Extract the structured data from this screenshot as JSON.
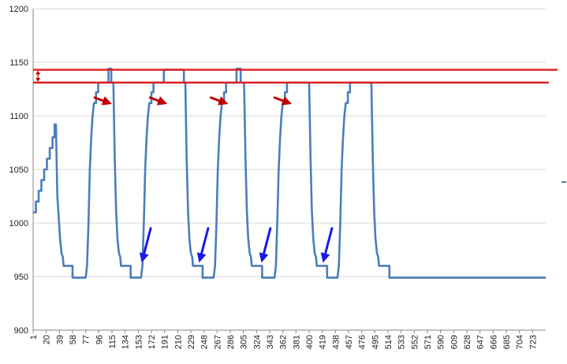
{
  "chart_data": {
    "type": "line",
    "title": "",
    "xlabel": "",
    "ylabel": "",
    "ylim": [
      900,
      1200
    ],
    "xlim": [
      1,
      742
    ],
    "y_ticks": [
      900,
      950,
      1000,
      1050,
      1100,
      1150,
      1200
    ],
    "x_ticks": [
      1,
      20,
      39,
      58,
      77,
      96,
      115,
      134,
      153,
      172,
      191,
      210,
      229,
      248,
      267,
      286,
      305,
      324,
      343,
      362,
      381,
      400,
      419,
      438,
      457,
      476,
      495,
      514,
      533,
      552,
      571,
      590,
      609,
      628,
      647,
      666,
      685,
      704,
      723
    ],
    "grid": "horizontal",
    "legend": "none",
    "series": [
      {
        "color": "#4a7ebb",
        "points": [
          [
            1,
            1010
          ],
          [
            5,
            1010
          ],
          [
            5,
            1020
          ],
          [
            9,
            1020
          ],
          [
            9,
            1030
          ],
          [
            13,
            1030
          ],
          [
            13,
            1040
          ],
          [
            17,
            1040
          ],
          [
            17,
            1050
          ],
          [
            21,
            1050
          ],
          [
            21,
            1060
          ],
          [
            25,
            1060
          ],
          [
            25,
            1070
          ],
          [
            29,
            1070
          ],
          [
            29,
            1080
          ],
          [
            32,
            1080
          ],
          [
            32,
            1092
          ],
          [
            34,
            1092
          ],
          [
            36,
            1025
          ],
          [
            38,
            1005
          ],
          [
            40,
            985
          ],
          [
            42,
            972
          ],
          [
            44,
            968
          ],
          [
            45,
            960
          ],
          [
            56,
            960
          ],
          [
            58,
            960
          ],
          [
            58,
            949
          ],
          [
            77,
            949
          ],
          [
            79,
            960
          ],
          [
            81,
            1000
          ],
          [
            83,
            1050
          ],
          [
            85,
            1080
          ],
          [
            87,
            1100
          ],
          [
            89,
            1112
          ],
          [
            92,
            1112
          ],
          [
            92,
            1122
          ],
          [
            95,
            1122
          ],
          [
            95,
            1131
          ],
          [
            110,
            1131
          ],
          [
            110,
            1144
          ],
          [
            114,
            1144
          ],
          [
            114,
            1131
          ],
          [
            117,
            1131
          ],
          [
            119,
            1060
          ],
          [
            121,
            1010
          ],
          [
            123,
            985
          ],
          [
            125,
            972
          ],
          [
            127,
            968
          ],
          [
            128,
            960
          ],
          [
            140,
            960
          ],
          [
            142,
            960
          ],
          [
            142,
            949
          ],
          [
            157,
            949
          ],
          [
            159,
            960
          ],
          [
            161,
            1000
          ],
          [
            163,
            1050
          ],
          [
            165,
            1080
          ],
          [
            167,
            1100
          ],
          [
            169,
            1112
          ],
          [
            172,
            1112
          ],
          [
            172,
            1122
          ],
          [
            175,
            1122
          ],
          [
            175,
            1131
          ],
          [
            190,
            1131
          ],
          [
            190,
            1143
          ],
          [
            219,
            1143
          ],
          [
            219,
            1131
          ],
          [
            221,
            1131
          ],
          [
            223,
            1060
          ],
          [
            225,
            1010
          ],
          [
            227,
            985
          ],
          [
            229,
            972
          ],
          [
            231,
            968
          ],
          [
            232,
            960
          ],
          [
            244,
            960
          ],
          [
            246,
            960
          ],
          [
            246,
            949
          ],
          [
            262,
            949
          ],
          [
            264,
            960
          ],
          [
            266,
            1000
          ],
          [
            268,
            1050
          ],
          [
            270,
            1080
          ],
          [
            272,
            1100
          ],
          [
            274,
            1112
          ],
          [
            277,
            1112
          ],
          [
            277,
            1122
          ],
          [
            280,
            1122
          ],
          [
            280,
            1131
          ],
          [
            295,
            1131
          ],
          [
            295,
            1144
          ],
          [
            301,
            1144
          ],
          [
            301,
            1131
          ],
          [
            306,
            1131
          ],
          [
            308,
            1060
          ],
          [
            310,
            1010
          ],
          [
            312,
            985
          ],
          [
            314,
            972
          ],
          [
            316,
            968
          ],
          [
            317,
            960
          ],
          [
            330,
            960
          ],
          [
            332,
            960
          ],
          [
            332,
            949
          ],
          [
            350,
            949
          ],
          [
            352,
            960
          ],
          [
            354,
            1000
          ],
          [
            356,
            1050
          ],
          [
            358,
            1080
          ],
          [
            360,
            1100
          ],
          [
            362,
            1112
          ],
          [
            365,
            1112
          ],
          [
            365,
            1122
          ],
          [
            368,
            1122
          ],
          [
            368,
            1131
          ],
          [
            400,
            1131
          ],
          [
            402,
            1060
          ],
          [
            404,
            1010
          ],
          [
            406,
            985
          ],
          [
            408,
            972
          ],
          [
            410,
            968
          ],
          [
            411,
            960
          ],
          [
            424,
            960
          ],
          [
            426,
            960
          ],
          [
            426,
            949
          ],
          [
            441,
            949
          ],
          [
            443,
            960
          ],
          [
            445,
            1000
          ],
          [
            447,
            1050
          ],
          [
            449,
            1080
          ],
          [
            451,
            1100
          ],
          [
            453,
            1112
          ],
          [
            456,
            1112
          ],
          [
            456,
            1122
          ],
          [
            459,
            1122
          ],
          [
            459,
            1131
          ],
          [
            490,
            1131
          ],
          [
            492,
            1060
          ],
          [
            494,
            1010
          ],
          [
            496,
            985
          ],
          [
            498,
            972
          ],
          [
            500,
            968
          ],
          [
            501,
            960
          ],
          [
            514,
            960
          ],
          [
            516,
            960
          ],
          [
            516,
            949
          ],
          [
            742,
            949
          ]
        ]
      }
    ],
    "annotations": {
      "upper_line_y": 1143,
      "lower_line_y": 1131,
      "red_arrows": [
        {
          "from": [
            90,
            1117
          ],
          "to": [
            115,
            1111
          ]
        },
        {
          "from": [
            170,
            1117
          ],
          "to": [
            195,
            1111
          ]
        },
        {
          "from": [
            258,
            1117
          ],
          "to": [
            283,
            1111
          ]
        },
        {
          "from": [
            350,
            1117
          ],
          "to": [
            375,
            1111
          ]
        }
      ],
      "blue_arrows": [
        {
          "from": [
            171,
            995
          ],
          "to": [
            158,
            963
          ]
        },
        {
          "from": [
            254,
            995
          ],
          "to": [
            241,
            963
          ]
        },
        {
          "from": [
            344,
            995
          ],
          "to": [
            331,
            963
          ]
        },
        {
          "from": [
            433,
            995
          ],
          "to": [
            420,
            963
          ]
        }
      ]
    }
  }
}
